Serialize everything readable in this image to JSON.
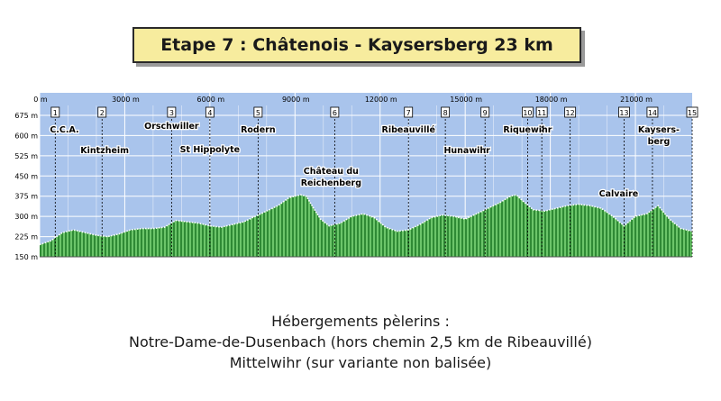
{
  "title": "Etape 7 :  Châtenois - Kaysersberg  23 km",
  "footer": {
    "line1": "Hébergements pèlerins :",
    "line2": "Notre-Dame-de-Dusenbach (hors chemin 2,5 km de Ribeauvillé)",
    "line3": "Mittelwihr (sur variante non balisée)"
  },
  "colors": {
    "sky": "#a9c4ec",
    "grid": "#ffffff",
    "fill_dark": "#1f7a2a",
    "fill_light": "#7ed07a",
    "profile_line": "#ffffff",
    "waypoint_line": "#000000",
    "text": "#000000"
  },
  "chart_data": {
    "type": "area",
    "title": "",
    "xlabel": "",
    "ylabel": "",
    "xlim": [
      0,
      23000
    ],
    "ylim": [
      150,
      675
    ],
    "x_ticks": [
      {
        "value": 0,
        "label": "0 m"
      },
      {
        "value": 3000,
        "label": "3000 m"
      },
      {
        "value": 6000,
        "label": "6000 m"
      },
      {
        "value": 9000,
        "label": "9000 m"
      },
      {
        "value": 12000,
        "label": "12000 m"
      },
      {
        "value": 15000,
        "label": "15000 m"
      },
      {
        "value": 18000,
        "label": "18000 m"
      },
      {
        "value": 21000,
        "label": "21000 m"
      }
    ],
    "y_ticks": [
      {
        "value": 150,
        "label": "150 m"
      },
      {
        "value": 225,
        "label": "225 m"
      },
      {
        "value": 300,
        "label": "300 m"
      },
      {
        "value": 375,
        "label": "375 m"
      },
      {
        "value": 450,
        "label": "450 m"
      },
      {
        "value": 525,
        "label": "525 m"
      },
      {
        "value": 600,
        "label": "600 m"
      },
      {
        "value": 675,
        "label": "675 m"
      }
    ],
    "grid": true,
    "profile": {
      "x": [
        0,
        400,
        800,
        1200,
        1600,
        2000,
        2400,
        2800,
        3200,
        3600,
        4000,
        4400,
        4800,
        5200,
        5600,
        6000,
        6400,
        6800,
        7200,
        7600,
        8000,
        8400,
        8800,
        9200,
        9400,
        9600,
        9900,
        10200,
        10600,
        11000,
        11400,
        11800,
        12200,
        12600,
        13000,
        13400,
        13800,
        14200,
        14600,
        15000,
        15400,
        15800,
        16200,
        16600,
        16800,
        17000,
        17400,
        17800,
        18200,
        18600,
        19000,
        19400,
        19800,
        20200,
        20600,
        21000,
        21400,
        21800,
        22200,
        22600,
        23000
      ],
      "y": [
        195,
        210,
        240,
        250,
        240,
        230,
        225,
        235,
        250,
        255,
        255,
        260,
        285,
        280,
        275,
        265,
        260,
        270,
        280,
        300,
        320,
        340,
        370,
        380,
        375,
        340,
        290,
        265,
        275,
        300,
        310,
        295,
        260,
        245,
        250,
        270,
        295,
        305,
        300,
        290,
        310,
        330,
        350,
        375,
        380,
        360,
        325,
        320,
        330,
        340,
        345,
        340,
        330,
        300,
        265,
        300,
        310,
        340,
        290,
        255,
        245
      ]
    },
    "waypoints": [
      {
        "num": "1",
        "x": 550,
        "label": "C.C.A."
      },
      {
        "num": "2",
        "x": 2200,
        "label": "Kintzheim"
      },
      {
        "num": "3",
        "x": 4650,
        "label": "Orschwiller"
      },
      {
        "num": "4",
        "x": 6000,
        "label": "St Hippolyte"
      },
      {
        "num": "5",
        "x": 7700,
        "label": "Rodern"
      },
      {
        "num": "6",
        "x": 10400,
        "label": "Château du Reichenberg"
      },
      {
        "num": "7",
        "x": 13000,
        "label": "Ribeauvillé"
      },
      {
        "num": "8",
        "x": 14300,
        "label": "Hunawihr"
      },
      {
        "num": "9",
        "x": 15700,
        "label": ""
      },
      {
        "num": "10",
        "x": 17200,
        "label": "Riquewihr"
      },
      {
        "num": "11",
        "x": 17700,
        "label": ""
      },
      {
        "num": "12",
        "x": 18700,
        "label": ""
      },
      {
        "num": "13",
        "x": 20600,
        "label": "Calvaire"
      },
      {
        "num": "14",
        "x": 21600,
        "label": "Kaysersberg"
      },
      {
        "num": "15",
        "x": 23000,
        "label": ""
      }
    ]
  }
}
